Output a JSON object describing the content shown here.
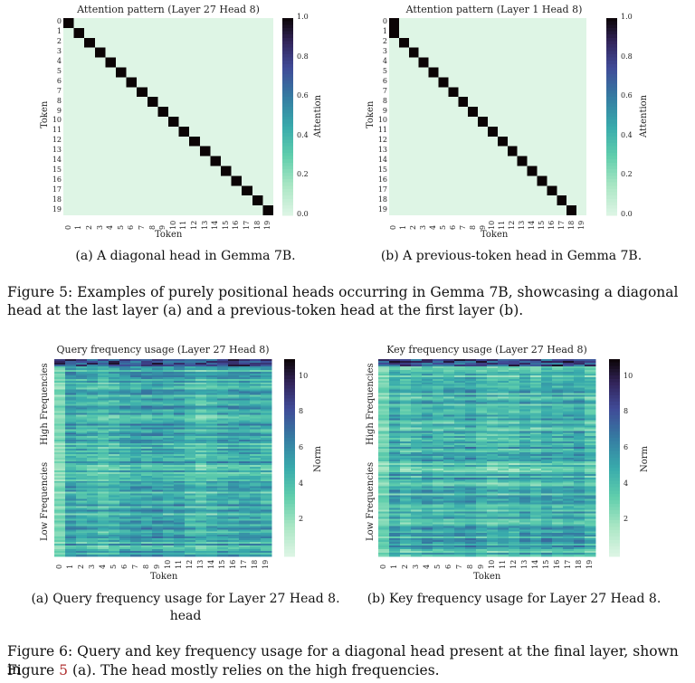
{
  "figure5": {
    "panel_a": {
      "title": "Attention pattern (Layer 27 Head 8)",
      "xlabel": "Token",
      "ylabel": "Token",
      "colorbar_label": "Attention",
      "colorbar_ticks": [
        "1.0",
        "0.8",
        "0.6",
        "0.4",
        "0.2",
        "0.0"
      ],
      "subcaption": "(a) A diagonal head in Gemma 7B."
    },
    "panel_b": {
      "title": "Attention pattern (Layer 1 Head 8)",
      "xlabel": "Token",
      "ylabel": "Token",
      "colorbar_label": "Attention",
      "colorbar_ticks": [
        "1.0",
        "0.8",
        "0.6",
        "0.4",
        "0.2",
        "0.0"
      ],
      "subcaption": "(b) A previous-token head in Gemma 7B."
    },
    "caption": "Figure 5: Examples of purely positional heads occurring in Gemma 7B, showcasing a diagonal head at the last layer (a) and a previous-token head at the first layer (b)."
  },
  "figure6": {
    "panel_a": {
      "title": "Query frequency usage (Layer 27 Head 8)",
      "xlabel": "Token",
      "ylabel_high": "High Frequencies",
      "ylabel_low": "Low Frequencies",
      "colorbar_label": "Norm",
      "colorbar_ticks": [
        "10",
        "8",
        "6",
        "4",
        "2"
      ],
      "subcaption_line1": "(a) Query frequency usage for Layer 27 Head 8.",
      "subcaption_line2": "head"
    },
    "panel_b": {
      "title": "Key frequency usage (Layer 27 Head 8)",
      "xlabel": "Token",
      "ylabel_high": "High Frequencies",
      "ylabel_low": "Low Frequencies",
      "colorbar_label": "Norm",
      "colorbar_ticks": [
        "10",
        "8",
        "6",
        "4",
        "2"
      ],
      "subcaption": "(b) Key frequency usage for Layer 27 Head 8."
    },
    "caption_line1": "Figure 6: Query and key frequency usage for a diagonal head present at the final layer, shown in",
    "caption_line2_pre": "Figure ",
    "caption_ref": "5",
    "caption_line2_post": " (a). The head mostly relies on the high frequencies."
  },
  "chart_data": [
    {
      "type": "heatmap",
      "title": "Attention pattern (Layer 27 Head 8)",
      "xlabel": "Token",
      "ylabel": "Token",
      "tokens": [
        0,
        1,
        2,
        3,
        4,
        5,
        6,
        7,
        8,
        9,
        10,
        11,
        12,
        13,
        14,
        15,
        16,
        17,
        18,
        19
      ],
      "pattern": "diagonal",
      "description_values": "value 1.0 at (i,i), 0.0 elsewhere",
      "colorbar": {
        "label": "Attention",
        "range": [
          0.0,
          1.0
        ]
      }
    },
    {
      "type": "heatmap",
      "title": "Attention pattern (Layer 1 Head 8)",
      "xlabel": "Token",
      "ylabel": "Token",
      "tokens": [
        0,
        1,
        2,
        3,
        4,
        5,
        6,
        7,
        8,
        9,
        10,
        11,
        12,
        13,
        14,
        15,
        16,
        17,
        18,
        19
      ],
      "pattern": "previous-token",
      "description_values": "value 1.0 at (0,0) and (i,i-1), 0.0 elsewhere",
      "colorbar": {
        "label": "Attention",
        "range": [
          0.0,
          1.0
        ]
      }
    },
    {
      "type": "heatmap",
      "title": "Query frequency usage (Layer 27 Head 8)",
      "xlabel": "Token",
      "tokens": [
        0,
        1,
        2,
        3,
        4,
        5,
        6,
        7,
        8,
        9,
        10,
        11,
        12,
        13,
        14,
        15,
        16,
        17,
        18,
        19
      ],
      "colorbar": {
        "label": "Norm",
        "range": [
          0,
          11
        ]
      }
    },
    {
      "type": "heatmap",
      "title": "Key frequency usage (Layer 27 Head 8)",
      "xlabel": "Token",
      "tokens": [
        0,
        1,
        2,
        3,
        4,
        5,
        6,
        7,
        8,
        9,
        10,
        11,
        12,
        13,
        14,
        15,
        16,
        17,
        18,
        19
      ],
      "colorbar": {
        "label": "Norm",
        "range": [
          0,
          11
        ]
      }
    }
  ]
}
